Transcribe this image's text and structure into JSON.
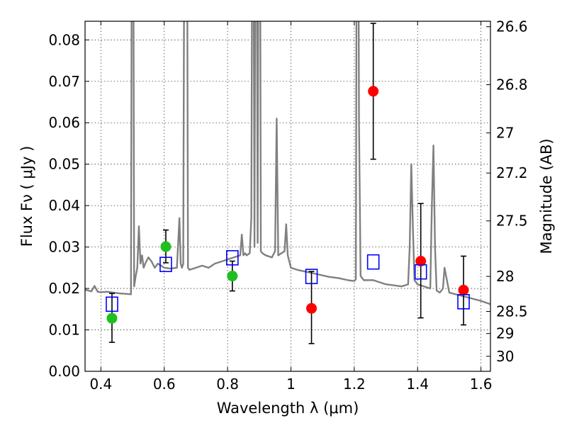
{
  "chart_data": {
    "type": "scatter",
    "title": "",
    "xlabel": "Wavelength  λ (μm)",
    "ylabel": "Flux  Fν  ( μJy )",
    "y2label": "Magnitude (AB)",
    "xlim": [
      0.35,
      1.63
    ],
    "ylim": [
      0.0,
      0.0845
    ],
    "grid": true,
    "x_ticks": [
      {
        "v": 0.4,
        "label": "0.4"
      },
      {
        "v": 0.6,
        "label": "0.6"
      },
      {
        "v": 0.8,
        "label": "0.8"
      },
      {
        "v": 1.0,
        "label": "1"
      },
      {
        "v": 1.2,
        "label": "1.2"
      },
      {
        "v": 1.4,
        "label": "1.4"
      },
      {
        "v": 1.6,
        "label": "1.6"
      }
    ],
    "y_ticks": [
      {
        "v": 0.0,
        "label": "0.00"
      },
      {
        "v": 0.01,
        "label": "0.01"
      },
      {
        "v": 0.02,
        "label": "0.02"
      },
      {
        "v": 0.03,
        "label": "0.03"
      },
      {
        "v": 0.04,
        "label": "0.04"
      },
      {
        "v": 0.05,
        "label": "0.05"
      },
      {
        "v": 0.06,
        "label": "0.06"
      },
      {
        "v": 0.07,
        "label": "0.07"
      },
      {
        "v": 0.08,
        "label": "0.08"
      }
    ],
    "y2_ticks": [
      {
        "mag": 26.6,
        "label": "26.6"
      },
      {
        "mag": 26.8,
        "label": "26.8"
      },
      {
        "mag": 27.0,
        "label": "27"
      },
      {
        "mag": 27.2,
        "label": "27.2"
      },
      {
        "mag": 27.5,
        "label": "27.5"
      },
      {
        "mag": 28.0,
        "label": "28"
      },
      {
        "mag": 28.5,
        "label": "28.5"
      },
      {
        "mag": 29.0,
        "label": "29"
      },
      {
        "mag": 30.0,
        "label": "30"
      }
    ],
    "series": [
      {
        "kind": "line",
        "color": "#808080",
        "x": [
          0.35,
          0.37,
          0.38,
          0.39,
          0.4,
          0.42,
          0.44,
          0.46,
          0.48,
          0.495,
          0.5,
          0.505,
          0.51,
          0.515,
          0.52,
          0.525,
          0.53,
          0.535,
          0.54,
          0.55,
          0.56,
          0.57,
          0.58,
          0.59,
          0.6,
          0.62,
          0.64,
          0.648,
          0.652,
          0.656,
          0.66,
          0.665,
          0.67,
          0.675,
          0.68,
          0.7,
          0.72,
          0.74,
          0.76,
          0.78,
          0.8,
          0.82,
          0.84,
          0.845,
          0.85,
          0.855,
          0.86,
          0.87,
          0.875,
          0.88,
          0.885,
          0.89,
          0.895,
          0.9,
          0.905,
          0.91,
          0.92,
          0.94,
          0.95,
          0.955,
          0.96,
          0.97,
          0.98,
          0.985,
          0.99,
          1.0,
          1.02,
          1.05,
          1.08,
          1.12,
          1.15,
          1.18,
          1.2,
          1.205,
          1.21,
          1.215,
          1.22,
          1.225,
          1.23,
          1.26,
          1.3,
          1.35,
          1.37,
          1.375,
          1.38,
          1.385,
          1.39,
          1.4,
          1.42,
          1.44,
          1.445,
          1.45,
          1.455,
          1.46,
          1.47,
          1.48,
          1.485,
          1.49,
          1.5,
          1.55,
          1.6,
          1.63
        ],
        "y": [
          0.0197,
          0.0193,
          0.0206,
          0.0192,
          0.0191,
          0.0192,
          0.019,
          0.0188,
          0.0187,
          0.0186,
          0.19,
          0.0205,
          0.023,
          0.025,
          0.035,
          0.026,
          0.028,
          0.025,
          0.026,
          0.0275,
          0.0265,
          0.025,
          0.026,
          0.0255,
          0.025,
          0.0248,
          0.025,
          0.037,
          0.026,
          0.025,
          0.026,
          0.15,
          0.18,
          0.025,
          0.0245,
          0.025,
          0.0255,
          0.025,
          0.026,
          0.0265,
          0.027,
          0.0275,
          0.028,
          0.033,
          0.028,
          0.0285,
          0.028,
          0.0285,
          0.037,
          0.16,
          0.03,
          0.17,
          0.031,
          0.2,
          0.029,
          0.0285,
          0.028,
          0.0275,
          0.029,
          0.061,
          0.028,
          0.0285,
          0.029,
          0.0355,
          0.028,
          0.025,
          0.0245,
          0.024,
          0.0235,
          0.0228,
          0.0225,
          0.022,
          0.0218,
          0.0222,
          0.19,
          0.06,
          0.023,
          0.0225,
          0.022,
          0.022,
          0.021,
          0.0205,
          0.021,
          0.03,
          0.05,
          0.035,
          0.022,
          0.021,
          0.0205,
          0.02,
          0.04,
          0.0545,
          0.03,
          0.0195,
          0.019,
          0.02,
          0.025,
          0.023,
          0.019,
          0.018,
          0.017,
          0.0162
        ]
      },
      {
        "kind": "markers",
        "marker": "circle",
        "color": "#1fbf1f",
        "points": [
          {
            "x": 0.435,
            "y": 0.0128,
            "ylo": 0.007,
            "yhi": 0.0188
          },
          {
            "x": 0.605,
            "y": 0.0301,
            "ylo": 0.0262,
            "yhi": 0.0341
          },
          {
            "x": 0.815,
            "y": 0.023,
            "ylo": 0.0194,
            "yhi": 0.0266
          }
        ]
      },
      {
        "kind": "markers",
        "marker": "circle",
        "color": "#ff0000",
        "points": [
          {
            "x": 1.065,
            "y": 0.0152,
            "ylo": 0.0067,
            "yhi": 0.0241
          },
          {
            "x": 1.26,
            "y": 0.0676,
            "ylo": 0.0512,
            "yhi": 0.084
          },
          {
            "x": 1.41,
            "y": 0.0266,
            "ylo": 0.0129,
            "yhi": 0.0405
          },
          {
            "x": 1.545,
            "y": 0.0196,
            "ylo": 0.0112,
            "yhi": 0.0278
          }
        ]
      },
      {
        "kind": "markers",
        "marker": "square-open",
        "color": "#0000ff",
        "points": [
          {
            "x": 0.435,
            "y": 0.0162
          },
          {
            "x": 0.605,
            "y": 0.0258
          },
          {
            "x": 0.815,
            "y": 0.0274
          },
          {
            "x": 1.065,
            "y": 0.0229
          },
          {
            "x": 1.26,
            "y": 0.0264
          },
          {
            "x": 1.41,
            "y": 0.024
          },
          {
            "x": 1.545,
            "y": 0.0168
          }
        ]
      }
    ]
  }
}
